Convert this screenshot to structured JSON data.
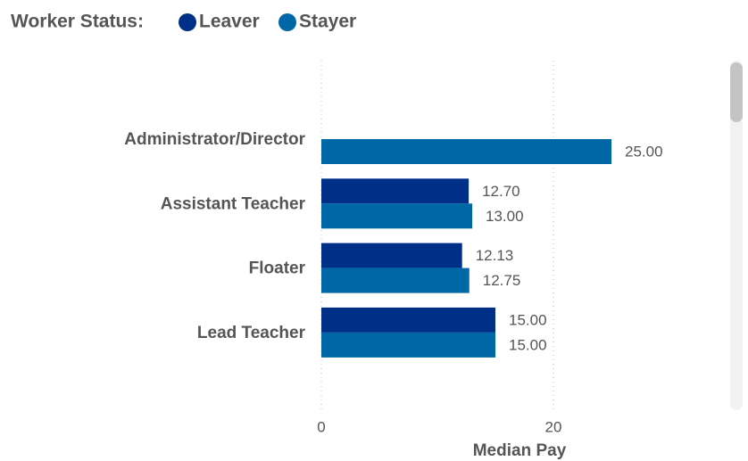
{
  "chart_data": {
    "type": "bar",
    "orientation": "horizontal",
    "legend_title": "Worker Status:",
    "x_label": "Median Pay",
    "categories": [
      "Administrator/Director",
      "Assistant Teacher",
      "Floater",
      "Lead Teacher"
    ],
    "series": [
      {
        "name": "Leaver",
        "color": "#002f87",
        "values": [
          null,
          12.7,
          12.13,
          15
        ],
        "value_labels": [
          null,
          "12.70",
          "12.13",
          "15.00"
        ]
      },
      {
        "name": "Stayer",
        "color": "#0067a6",
        "values": [
          25,
          13,
          12.75,
          15
        ],
        "value_labels": [
          "25.00",
          "13.00",
          "12.75",
          "15.00"
        ]
      }
    ],
    "xlim": [
      0,
      34
    ],
    "xticks": [
      0,
      20
    ],
    "grid": true,
    "legend": "top-left"
  }
}
